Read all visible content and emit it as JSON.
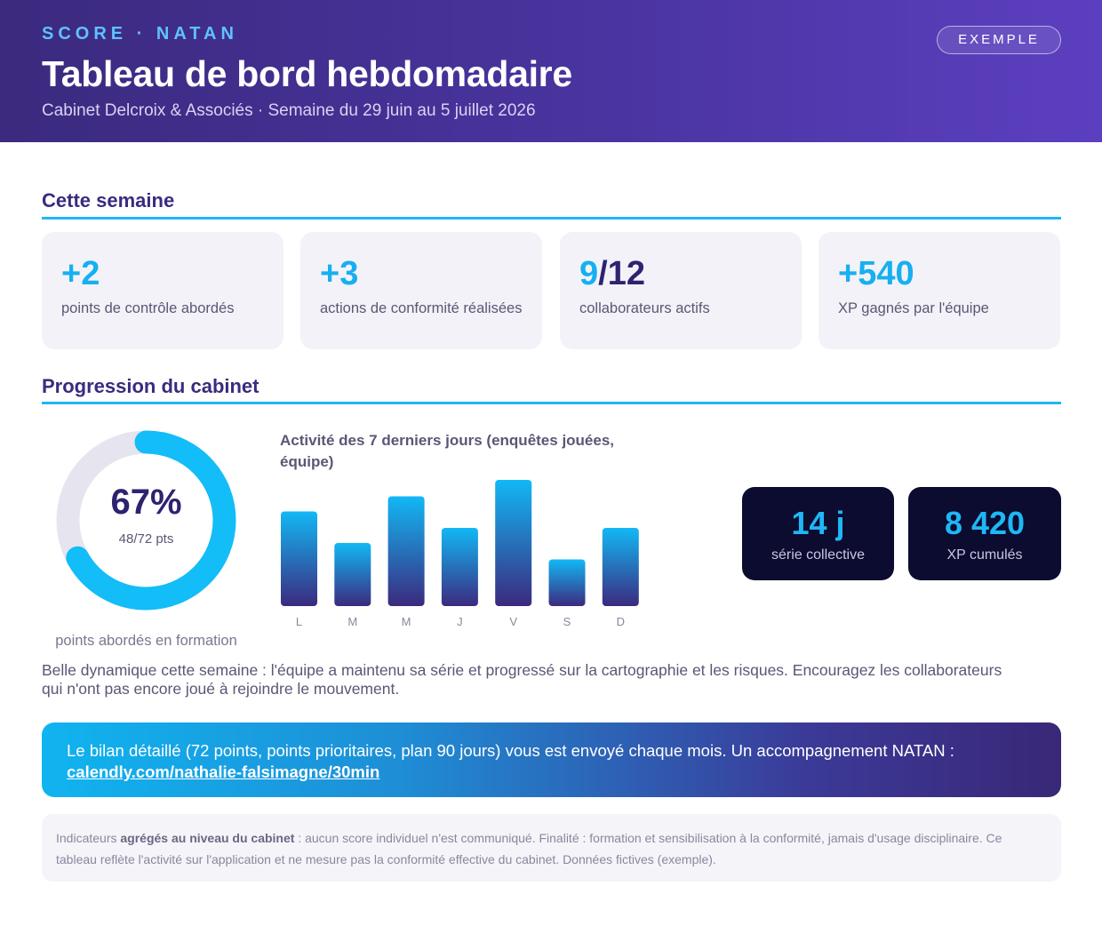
{
  "header": {
    "kicker": "SCORE · NATAN",
    "title": "Tableau de bord hebdomadaire",
    "subtitle": "Cabinet Delcroix & Associés · Semaine du 29 juin au 5 juillet 2026",
    "badge": "EXEMPLE"
  },
  "week": {
    "title": "Cette semaine",
    "kpis": [
      {
        "value": "+2",
        "label": "points de contrôle abordés"
      },
      {
        "value": "+3",
        "label": "actions de conformité réalisées"
      },
      {
        "value_main": "9",
        "value_rest": "/12",
        "label": "collaborateurs actifs"
      },
      {
        "value": "+540",
        "label": "XP gagnés par l'équipe"
      }
    ]
  },
  "progress": {
    "title": "Progression du cabinet",
    "donut": {
      "percent_label": "67%",
      "points_label": "48/72 pts",
      "fraction": 0.67,
      "caption": "points abordés en formation"
    },
    "stats": [
      {
        "value": "14 j",
        "label": "série collective"
      },
      {
        "value": "8 420",
        "label": "XP cumulés"
      }
    ],
    "note": "Belle dynamique cette semaine : l'équipe a maintenu sa série et progressé sur la cartographie et les risques. Encouragez les collaborateurs qui n'ont pas encore joué à rejoindre le mouvement."
  },
  "chart_data": {
    "type": "bar",
    "title": "Activité des 7 derniers jours (enquêtes jouées, équipe)",
    "categories": [
      "L",
      "M",
      "M",
      "J",
      "V",
      "S",
      "D"
    ],
    "values": [
      7.5,
      5,
      8.7,
      6.2,
      10,
      3.7,
      6.2
    ],
    "ylim": [
      0,
      10
    ],
    "xlabel": "",
    "ylabel": "",
    "grid": false,
    "colors": {
      "top": "#12b8f5",
      "bottom": "#3b2a7e"
    }
  },
  "cta": {
    "text": "Le bilan détaillé (72 points, points prioritaires, plan 90 jours) vous est envoyé chaque mois. Un accompagnement NATAN :",
    "link": "calendly.com/nathalie-falsimagne/30min"
  },
  "footer": {
    "prefix": "Indicateurs ",
    "bold": "agrégés au niveau du cabinet",
    "rest": " : aucun score individuel n'est communiqué. Finalité : formation et sensibilisation à la conformité, jamais d'usage disciplinaire. Ce tableau reflète l'activité sur l'application et ne mesure pas la conformité effective du cabinet. Données fictives (exemple)."
  }
}
